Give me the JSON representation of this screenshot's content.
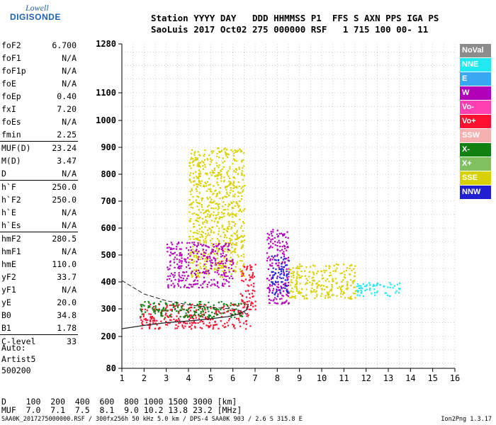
{
  "logo": {
    "line1": "Lowell",
    "line2": "DIGISONDE"
  },
  "header": {
    "labels": "Station YYYY DAY   DDD HHMMSS P1  FFS S AXN PPS IGA PS",
    "values": "SaoLuis 2017 Oct02 275 000000 RSF   1 715 100 00- 11"
  },
  "params": [
    {
      "label": "foF2",
      "value": "6.700"
    },
    {
      "label": "foF1",
      "value": "N/A"
    },
    {
      "label": "foF1p",
      "value": "N/A"
    },
    {
      "label": "foE",
      "value": "N/A"
    },
    {
      "label": "foEp",
      "value": "0.40"
    },
    {
      "label": "fxI",
      "value": "7.20"
    },
    {
      "label": "foEs",
      "value": "N/A"
    },
    {
      "label": "fmin",
      "value": "2.25"
    },
    {
      "sep": true
    },
    {
      "label": "MUF(D)",
      "value": "23.24"
    },
    {
      "label": "M(D)",
      "value": "3.47"
    },
    {
      "label": "D",
      "value": "N/A"
    },
    {
      "sep": true
    },
    {
      "label": "h`F",
      "value": "250.0"
    },
    {
      "label": "h`F2",
      "value": "250.0"
    },
    {
      "label": "h`E",
      "value": "N/A"
    },
    {
      "label": "h`Es",
      "value": "N/A"
    },
    {
      "sep": true
    },
    {
      "label": "hmF2",
      "value": "280.5"
    },
    {
      "label": "hmF1",
      "value": "N/A"
    },
    {
      "label": "hmE",
      "value": "110.0"
    },
    {
      "label": "yF2",
      "value": "33.7"
    },
    {
      "label": "yF1",
      "value": "N/A"
    },
    {
      "label": "yE",
      "value": "20.0"
    },
    {
      "label": "B0",
      "value": "34.8"
    },
    {
      "label": "B1",
      "value": "1.78"
    },
    {
      "sep": true
    },
    {
      "label": "C-level",
      "value": "33"
    }
  ],
  "auto": {
    "line1": "Auto:",
    "line2": "Artist5",
    "line3": "500200"
  },
  "bottom": {
    "d_line": "D    100  200  400  600  800 1000 1500 3000 [km]",
    "muf_line": "MUF  7.0  7.1  7.5  8.1  9.0 10.2 13.8 23.2 [MHz]"
  },
  "footer": {
    "left": "SAA0K_2017275000000.RSF / 300fx256h 50 kHz 5.0 km / DPS-4 SAA0K 903 / 2.6 S 315.8 E",
    "right": "Ion2Png 1.3.17"
  },
  "legend": [
    {
      "label": "NoVal",
      "color": "#8c8c8c"
    },
    {
      "label": "NNE",
      "color": "#22e8f0"
    },
    {
      "label": "E",
      "color": "#3aa8f0"
    },
    {
      "label": "W",
      "color": "#b000b8"
    },
    {
      "label": "Vo-",
      "color": "#ff40b0"
    },
    {
      "label": "Vo+",
      "color": "#ff1030"
    },
    {
      "label": "SSW",
      "color": "#f5b0b0"
    },
    {
      "label": "X-",
      "color": "#108010"
    },
    {
      "label": "X+",
      "color": "#80c060"
    },
    {
      "label": "SSE",
      "color": "#d8d000"
    },
    {
      "label": "NNW",
      "color": "#2020d0"
    }
  ],
  "chart_data": {
    "type": "scatter",
    "title": "",
    "xlabel": "",
    "ylabel": "",
    "xlim": [
      1,
      16
    ],
    "ylim": [
      80,
      1280
    ],
    "x_ticks": [
      1,
      2,
      3,
      4,
      5,
      6,
      7,
      8,
      9,
      10,
      11,
      12,
      13,
      14,
      15,
      16
    ],
    "y_ticks": [
      80,
      200,
      300,
      400,
      500,
      600,
      700,
      800,
      900,
      1000,
      1100,
      1280
    ],
    "y_scale": "nonlinear (printed ticks)",
    "grid": true,
    "clusters": [
      {
        "name": "Vo+",
        "x": [
          1.8,
          6.8
        ],
        "y": [
          230,
          320
        ]
      },
      {
        "name": "Vo+",
        "x": [
          6.3,
          7.0
        ],
        "y": [
          300,
          470
        ]
      },
      {
        "name": "W",
        "x": [
          7.5,
          8.5
        ],
        "y": [
          320,
          600
        ]
      },
      {
        "name": "SSE",
        "x": [
          8.5,
          11.5
        ],
        "y": [
          340,
          470
        ]
      },
      {
        "name": "SSE",
        "x": [
          4.0,
          6.5
        ],
        "y": [
          420,
          900
        ]
      },
      {
        "name": "NNE",
        "x": [
          11.5,
          13.5
        ],
        "y": [
          350,
          400
        ]
      },
      {
        "name": "W",
        "x": [
          3.0,
          6.0
        ],
        "y": [
          380,
          550
        ]
      },
      {
        "name": "NNW",
        "x": [
          7.7,
          8.5
        ],
        "y": [
          350,
          500
        ]
      },
      {
        "name": "X-",
        "x": [
          1.8,
          6.5
        ],
        "y": [
          270,
          330
        ]
      }
    ],
    "trace_curve": {
      "x": [
        1.0,
        2.0,
        3.0,
        4.0,
        5.0,
        5.8,
        6.3,
        6.6,
        6.7
      ],
      "y": [
        228,
        240,
        250,
        256,
        264,
        272,
        282,
        295,
        318
      ]
    },
    "dashed_profile": {
      "x": [
        1.0,
        1.5,
        2.0,
        3.0,
        4.0,
        5.0,
        6.0,
        6.5,
        6.7
      ],
      "y": [
        405,
        380,
        355,
        330,
        315,
        305,
        300,
        290,
        270
      ]
    }
  }
}
